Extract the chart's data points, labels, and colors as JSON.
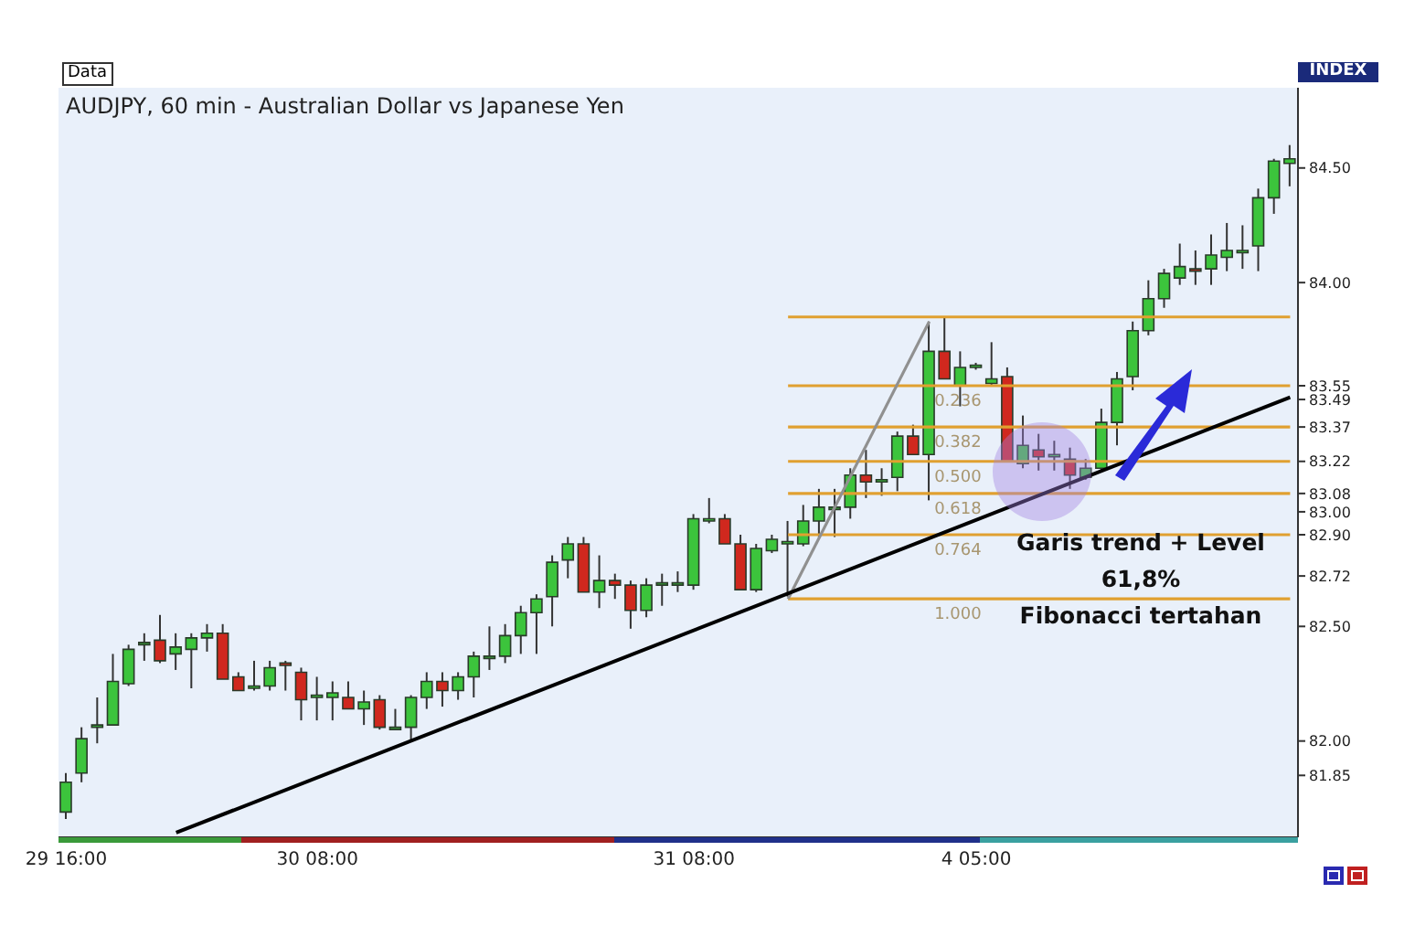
{
  "chart_data": {
    "type": "candlestick",
    "title": "AUDJPY, 60 min - Australian Dollar vs Japanese Yen",
    "annotations": [
      "Data",
      "INDEX",
      "Garis trend + Level 61,8%\nFibonacci tertahan"
    ],
    "categories": [
      "29 16:00",
      null,
      null,
      null,
      null,
      null,
      null,
      null,
      null,
      null,
      null,
      null,
      null,
      null,
      null,
      null,
      "30 08:00",
      null,
      null,
      null,
      null,
      null,
      null,
      null,
      null,
      null,
      null,
      null,
      null,
      null,
      null,
      null,
      null,
      null,
      null,
      null,
      null,
      null,
      null,
      null,
      "31 08:00",
      null,
      null,
      null,
      null,
      null,
      null,
      null,
      null,
      null,
      null,
      null,
      null,
      null,
      null,
      null,
      null,
      null,
      "4 05:00",
      null,
      null,
      null,
      null,
      null,
      null,
      null,
      null,
      null,
      null,
      null,
      null,
      null,
      null,
      null,
      null,
      null,
      null,
      null,
      null
    ],
    "ohlc": [
      [
        81.69,
        81.86,
        81.66,
        81.82
      ],
      [
        81.86,
        82.06,
        81.82,
        82.01
      ],
      [
        82.06,
        82.19,
        81.99,
        82.07
      ],
      [
        82.07,
        82.38,
        82.07,
        82.26
      ],
      [
        82.25,
        82.42,
        82.24,
        82.4
      ],
      [
        82.42,
        82.47,
        82.35,
        82.43
      ],
      [
        82.44,
        82.55,
        82.34,
        82.35
      ],
      [
        82.38,
        82.47,
        82.31,
        82.41
      ],
      [
        82.4,
        82.47,
        82.23,
        82.45
      ],
      [
        82.45,
        82.51,
        82.39,
        82.47
      ],
      [
        82.47,
        82.51,
        82.27,
        82.27
      ],
      [
        82.28,
        82.3,
        82.22,
        82.22
      ],
      [
        82.23,
        82.35,
        82.22,
        82.24
      ],
      [
        82.24,
        82.35,
        82.22,
        82.32
      ],
      [
        82.34,
        82.35,
        82.22,
        82.33
      ],
      [
        82.3,
        82.32,
        82.09,
        82.18
      ],
      [
        82.19,
        82.28,
        82.09,
        82.2
      ],
      [
        82.19,
        82.26,
        82.09,
        82.21
      ],
      [
        82.19,
        82.26,
        82.14,
        82.14
      ],
      [
        82.14,
        82.22,
        82.07,
        82.17
      ],
      [
        82.18,
        82.2,
        82.05,
        82.06
      ],
      [
        82.05,
        82.14,
        82.05,
        82.06
      ],
      [
        82.06,
        82.2,
        82.0,
        82.19
      ],
      [
        82.19,
        82.3,
        82.14,
        82.26
      ],
      [
        82.26,
        82.3,
        82.15,
        82.22
      ],
      [
        82.22,
        82.3,
        82.18,
        82.28
      ],
      [
        82.28,
        82.39,
        82.19,
        82.37
      ],
      [
        82.36,
        82.5,
        82.31,
        82.37
      ],
      [
        82.37,
        82.51,
        82.34,
        82.46
      ],
      [
        82.46,
        82.59,
        82.38,
        82.56
      ],
      [
        82.56,
        82.64,
        82.38,
        82.62
      ],
      [
        82.63,
        82.81,
        82.5,
        82.78
      ],
      [
        82.79,
        82.89,
        82.71,
        82.86
      ],
      [
        82.86,
        82.89,
        82.65,
        82.65
      ],
      [
        82.65,
        82.81,
        82.58,
        82.7
      ],
      [
        82.7,
        82.73,
        82.62,
        82.68
      ],
      [
        82.68,
        82.7,
        82.49,
        82.57
      ],
      [
        82.57,
        82.71,
        82.54,
        82.68
      ],
      [
        82.68,
        82.73,
        82.59,
        82.69
      ],
      [
        82.68,
        82.74,
        82.65,
        82.69
      ],
      [
        82.68,
        82.99,
        82.66,
        82.97
      ],
      [
        82.96,
        83.06,
        82.95,
        82.97
      ],
      [
        82.97,
        82.99,
        82.86,
        82.86
      ],
      [
        82.86,
        82.9,
        82.66,
        82.66
      ],
      [
        82.66,
        82.86,
        82.65,
        82.84
      ],
      [
        82.83,
        82.9,
        82.82,
        82.88
      ],
      [
        82.86,
        82.96,
        82.63,
        82.87
      ],
      [
        82.86,
        83.03,
        82.85,
        82.96
      ],
      [
        82.96,
        83.1,
        82.89,
        83.02
      ],
      [
        83.01,
        83.1,
        82.89,
        83.02
      ],
      [
        83.02,
        83.19,
        82.97,
        83.16
      ],
      [
        83.16,
        83.27,
        83.06,
        83.13
      ],
      [
        83.13,
        83.19,
        83.07,
        83.14
      ],
      [
        83.15,
        83.35,
        83.09,
        83.33
      ],
      [
        83.33,
        83.38,
        83.25,
        83.25
      ],
      [
        83.25,
        83.83,
        83.05,
        83.7
      ],
      [
        83.7,
        83.85,
        83.58,
        83.58
      ],
      [
        83.55,
        83.7,
        83.46,
        83.63
      ],
      [
        83.63,
        83.65,
        83.62,
        83.64
      ],
      [
        83.56,
        83.74,
        83.55,
        83.58
      ],
      [
        83.59,
        83.63,
        83.22,
        83.22
      ],
      [
        83.21,
        83.42,
        83.19,
        83.29
      ],
      [
        83.27,
        83.34,
        83.18,
        83.24
      ],
      [
        83.24,
        83.31,
        83.18,
        83.25
      ],
      [
        83.23,
        83.28,
        83.1,
        83.16
      ],
      [
        83.15,
        83.23,
        83.14,
        83.19
      ],
      [
        83.19,
        83.45,
        83.18,
        83.39
      ],
      [
        83.39,
        83.61,
        83.29,
        83.58
      ],
      [
        83.59,
        83.83,
        83.53,
        83.79
      ],
      [
        83.79,
        84.01,
        83.77,
        83.93
      ],
      [
        83.93,
        84.06,
        83.89,
        84.04
      ],
      [
        84.02,
        84.17,
        83.99,
        84.07
      ],
      [
        84.06,
        84.14,
        83.99,
        84.05
      ],
      [
        84.06,
        84.21,
        83.99,
        84.12
      ],
      [
        84.11,
        84.26,
        84.05,
        84.14
      ],
      [
        84.13,
        84.25,
        84.06,
        84.14
      ],
      [
        84.16,
        84.41,
        84.05,
        84.37
      ],
      [
        84.37,
        84.54,
        84.3,
        84.53
      ],
      [
        84.52,
        84.6,
        84.42,
        84.54
      ]
    ],
    "colors": [
      "#3cc43c",
      "#3cc43c",
      "#3cc43c",
      "#3cc43c",
      "#3cc43c",
      "#3cc43c",
      "#d0281e",
      "#3cc43c",
      "#3cc43c",
      "#3cc43c",
      "#d0281e",
      "#d0281e",
      "#3cc43c",
      "#3cc43c",
      "#d0281e",
      "#d0281e",
      "#3cc43c",
      "#3cc43c",
      "#d0281e",
      "#3cc43c",
      "#d0281e",
      "#3cc43c",
      "#3cc43c",
      "#3cc43c",
      "#d0281e",
      "#3cc43c",
      "#3cc43c",
      "#3cc43c",
      "#3cc43c",
      "#3cc43c",
      "#3cc43c",
      "#3cc43c",
      "#3cc43c",
      "#d0281e",
      "#3cc43c",
      "#d0281e",
      "#d0281e",
      "#3cc43c",
      "#3cc43c",
      "#3cc43c",
      "#3cc43c",
      "#3cc43c",
      "#d0281e",
      "#d0281e",
      "#3cc43c",
      "#3cc43c",
      "#3cc43c",
      "#3cc43c",
      "#3cc43c",
      "#3cc43c",
      "#3cc43c",
      "#d0281e",
      "#3cc43c",
      "#3cc43c",
      "#d0281e",
      "#3cc43c",
      "#d0281e",
      "#3cc43c",
      "#3cc43c",
      "#3cc43c",
      "#d0281e",
      "#3cc43c",
      "#d0281e",
      "#3cc43c",
      "#d0281e",
      "#3cc43c",
      "#3cc43c",
      "#3cc43c",
      "#3cc43c",
      "#3cc43c",
      "#3cc43c",
      "#3cc43c",
      "#d0281e",
      "#3cc43c",
      "#3cc43c",
      "#3cc43c",
      "#3cc43c",
      "#3cc43c",
      "#3cc43c"
    ],
    "series": [
      {
        "type": "line",
        "color": "#e0a030",
        "values": [
          null,
          null,
          null,
          null,
          null,
          null,
          null,
          null,
          null,
          null,
          null,
          null,
          null,
          null,
          null,
          null,
          null,
          null,
          null,
          null,
          null,
          null,
          null,
          null,
          null,
          null,
          null,
          null,
          null,
          null,
          null,
          null,
          null,
          null,
          null,
          null,
          null,
          null,
          null,
          null,
          null,
          null,
          null,
          null,
          null,
          null,
          83.85,
          null,
          null,
          null,
          null,
          null,
          null,
          null,
          null,
          null,
          null,
          null,
          null,
          null,
          null,
          null,
          null,
          null,
          null,
          null,
          null,
          null,
          null,
          null,
          null,
          null,
          null,
          null,
          null,
          null,
          null,
          null,
          83.85
        ]
      },
      {
        "type": "line",
        "name": "0.236",
        "color": "#e0a030",
        "values": [
          null,
          null,
          null,
          null,
          null,
          null,
          null,
          null,
          null,
          null,
          null,
          null,
          null,
          null,
          null,
          null,
          null,
          null,
          null,
          null,
          null,
          null,
          null,
          null,
          null,
          null,
          null,
          null,
          null,
          null,
          null,
          null,
          null,
          null,
          null,
          null,
          null,
          null,
          null,
          null,
          null,
          null,
          null,
          null,
          null,
          null,
          83.55,
          null,
          null,
          null,
          null,
          null,
          null,
          null,
          null,
          null,
          null,
          null,
          null,
          null,
          null,
          null,
          null,
          null,
          null,
          null,
          null,
          null,
          null,
          null,
          null,
          null,
          null,
          null,
          null,
          null,
          null,
          null,
          83.55
        ]
      },
      {
        "type": "line",
        "name": "0.382",
        "color": "#e0a030",
        "values": [
          null,
          null,
          null,
          null,
          null,
          null,
          null,
          null,
          null,
          null,
          null,
          null,
          null,
          null,
          null,
          null,
          null,
          null,
          null,
          null,
          null,
          null,
          null,
          null,
          null,
          null,
          null,
          null,
          null,
          null,
          null,
          null,
          null,
          null,
          null,
          null,
          null,
          null,
          null,
          null,
          null,
          null,
          null,
          null,
          null,
          null,
          83.37,
          null,
          null,
          null,
          null,
          null,
          null,
          null,
          null,
          null,
          null,
          null,
          null,
          null,
          null,
          null,
          null,
          null,
          null,
          null,
          null,
          null,
          null,
          null,
          null,
          null,
          null,
          null,
          null,
          null,
          null,
          null,
          83.37
        ]
      },
      {
        "type": "line",
        "name": "0.500",
        "color": "#e0a030",
        "values": [
          null,
          null,
          null,
          null,
          null,
          null,
          null,
          null,
          null,
          null,
          null,
          null,
          null,
          null,
          null,
          null,
          null,
          null,
          null,
          null,
          null,
          null,
          null,
          null,
          null,
          null,
          null,
          null,
          null,
          null,
          null,
          null,
          null,
          null,
          null,
          null,
          null,
          null,
          null,
          null,
          null,
          null,
          null,
          null,
          null,
          null,
          83.22,
          null,
          null,
          null,
          null,
          null,
          null,
          null,
          null,
          null,
          null,
          null,
          null,
          null,
          null,
          null,
          null,
          null,
          null,
          null,
          null,
          null,
          null,
          null,
          null,
          null,
          null,
          null,
          null,
          null,
          null,
          null,
          83.22
        ]
      },
      {
        "type": "line",
        "name": "0.618",
        "color": "#e0a030",
        "values": [
          null,
          null,
          null,
          null,
          null,
          null,
          null,
          null,
          null,
          null,
          null,
          null,
          null,
          null,
          null,
          null,
          null,
          null,
          null,
          null,
          null,
          null,
          null,
          null,
          null,
          null,
          null,
          null,
          null,
          null,
          null,
          null,
          null,
          null,
          null,
          null,
          null,
          null,
          null,
          null,
          null,
          null,
          null,
          null,
          null,
          null,
          83.08,
          null,
          null,
          null,
          null,
          null,
          null,
          null,
          null,
          null,
          null,
          null,
          null,
          null,
          null,
          null,
          null,
          null,
          null,
          null,
          null,
          null,
          null,
          null,
          null,
          null,
          null,
          null,
          null,
          null,
          null,
          null,
          83.08
        ]
      },
      {
        "type": "line",
        "name": "0.764",
        "color": "#e0a030",
        "values": [
          null,
          null,
          null,
          null,
          null,
          null,
          null,
          null,
          null,
          null,
          null,
          null,
          null,
          null,
          null,
          null,
          null,
          null,
          null,
          null,
          null,
          null,
          null,
          null,
          null,
          null,
          null,
          null,
          null,
          null,
          null,
          null,
          null,
          null,
          null,
          null,
          null,
          null,
          null,
          null,
          null,
          null,
          null,
          null,
          null,
          null,
          82.9,
          null,
          null,
          null,
          null,
          null,
          null,
          null,
          null,
          null,
          null,
          null,
          null,
          null,
          null,
          null,
          null,
          null,
          null,
          null,
          null,
          null,
          null,
          null,
          null,
          null,
          null,
          null,
          null,
          null,
          null,
          null,
          82.9
        ]
      },
      {
        "type": "line",
        "name": "1.000",
        "color": "#e0a030",
        "values": [
          null,
          null,
          null,
          null,
          null,
          null,
          null,
          null,
          null,
          null,
          null,
          null,
          null,
          null,
          null,
          null,
          null,
          null,
          null,
          null,
          null,
          null,
          null,
          null,
          null,
          null,
          null,
          null,
          null,
          null,
          null,
          null,
          null,
          null,
          null,
          null,
          null,
          null,
          null,
          null,
          null,
          null,
          null,
          null,
          null,
          null,
          82.62,
          null,
          null,
          null,
          null,
          null,
          null,
          null,
          null,
          null,
          null,
          null,
          null,
          null,
          null,
          null,
          null,
          null,
          null,
          null,
          null,
          null,
          null,
          null,
          null,
          null,
          null,
          null,
          null,
          null,
          null,
          null,
          82.62
        ]
      },
      {
        "type": "line",
        "color": "#909090",
        "values": [
          null,
          null,
          null,
          null,
          null,
          null,
          null,
          null,
          null,
          null,
          null,
          null,
          null,
          null,
          null,
          null,
          null,
          null,
          null,
          null,
          null,
          null,
          null,
          null,
          null,
          null,
          null,
          null,
          null,
          null,
          null,
          null,
          null,
          null,
          null,
          null,
          null,
          null,
          null,
          null,
          null,
          null,
          null,
          null,
          null,
          null,
          82.62,
          null,
          null,
          null,
          null,
          null,
          null,
          null,
          null,
          83.83,
          null,
          null,
          null,
          null,
          null,
          null,
          null,
          null,
          null,
          null,
          null,
          null,
          null,
          null,
          null,
          null,
          null,
          null,
          null,
          null,
          null,
          null,
          null
        ]
      },
      {
        "type": "line",
        "color": "#000000",
        "values": [
          null,
          null,
          null,
          null,
          null,
          null,
          null,
          81.6,
          null,
          null,
          null,
          null,
          null,
          null,
          null,
          null,
          null,
          null,
          null,
          null,
          null,
          null,
          null,
          null,
          null,
          null,
          null,
          null,
          null,
          null,
          null,
          null,
          null,
          null,
          null,
          null,
          null,
          null,
          null,
          null,
          null,
          null,
          null,
          null,
          null,
          null,
          null,
          null,
          null,
          null,
          null,
          null,
          null,
          null,
          null,
          null,
          null,
          null,
          null,
          null,
          null,
          null,
          null,
          null,
          null,
          null,
          null,
          null,
          null,
          null,
          null,
          null,
          null,
          null,
          null,
          null,
          null,
          null,
          83.5
        ]
      }
    ],
    "ylim": [
      81.58,
      84.85
    ],
    "yticks": [
      {
        "value": 81.85,
        "label": "81.85"
      },
      {
        "value": 82,
        "label": "82.00"
      },
      {
        "value": 82.5,
        "label": "82.50"
      },
      {
        "value": 82.72,
        "label": "82.72"
      },
      {
        "value": 82.9,
        "label": "82.90"
      },
      {
        "value": 83,
        "label": "83.00"
      },
      {
        "value": 83.08,
        "label": "83.08"
      },
      {
        "value": 83.22,
        "label": "83.22"
      },
      {
        "value": 83.37,
        "label": "83.37"
      },
      {
        "value": 83.49,
        "label": "83.49"
      },
      {
        "value": 83.55,
        "label": "83.55"
      },
      {
        "value": 84,
        "label": "84.00"
      },
      {
        "value": 84.5,
        "label": "84.50"
      }
    ],
    "grid": false,
    "legend": false
  }
}
